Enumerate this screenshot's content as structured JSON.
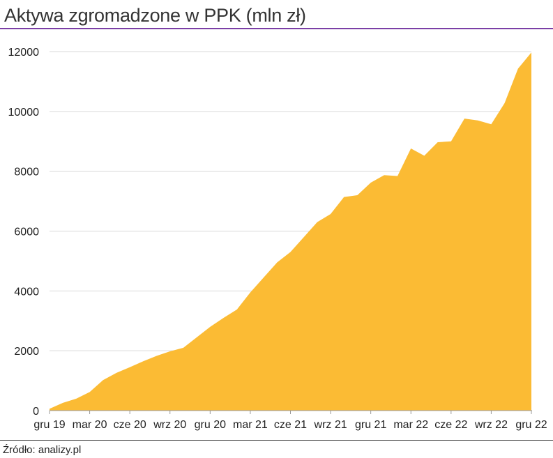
{
  "title": "Aktywa zgromadzone w PPK (mln zł)",
  "source": "Źródło: analizy.pl",
  "colors": {
    "area": "#fbbb34",
    "title_rule": "#7b3fa6",
    "grid": "#d9d9d9",
    "axis": "#999999",
    "text": "#222222"
  },
  "chart_data": {
    "type": "area",
    "title": "Aktywa zgromadzone w PPK (mln zł)",
    "xlabel": "",
    "ylabel": "",
    "ylim": [
      0,
      12000
    ],
    "yticks": [
      0,
      2000,
      4000,
      6000,
      8000,
      10000,
      12000
    ],
    "ytick_labels": [
      "0",
      "2000",
      "4000",
      "6000",
      "8000",
      "10000",
      "12000"
    ],
    "x_tick_labels": [
      "gru 19",
      "mar 20",
      "cze 20",
      "wrz 20",
      "gru 20",
      "mar 21",
      "cze 21",
      "wrz 21",
      "gru 21",
      "mar 22",
      "cze 22",
      "wrz 22",
      "gru 22"
    ],
    "grid": true,
    "x": [
      "gru 19",
      "sty 20",
      "lut 20",
      "mar 20",
      "kwi 20",
      "maj 20",
      "cze 20",
      "lip 20",
      "sie 20",
      "wrz 20",
      "paź 20",
      "lis 20",
      "gru 20",
      "sty 21",
      "lut 21",
      "mar 21",
      "kwi 21",
      "maj 21",
      "cze 21",
      "lip 21",
      "sie 21",
      "wrz 21",
      "paź 21",
      "lis 21",
      "gru 21",
      "sty 22",
      "lut 22",
      "mar 22",
      "kwi 22",
      "maj 22",
      "cze 22",
      "lip 22",
      "sie 22",
      "wrz 22",
      "paź 22",
      "lis 22",
      "gru 22"
    ],
    "values": [
      60,
      260,
      400,
      620,
      1020,
      1260,
      1450,
      1650,
      1830,
      1980,
      2100,
      2450,
      2800,
      3100,
      3380,
      3950,
      4450,
      4950,
      5300,
      5800,
      6300,
      6570,
      7140,
      7200,
      7620,
      7870,
      7840,
      8760,
      8520,
      8970,
      9000,
      9760,
      9700,
      9570,
      10280,
      11430,
      11970
    ]
  }
}
